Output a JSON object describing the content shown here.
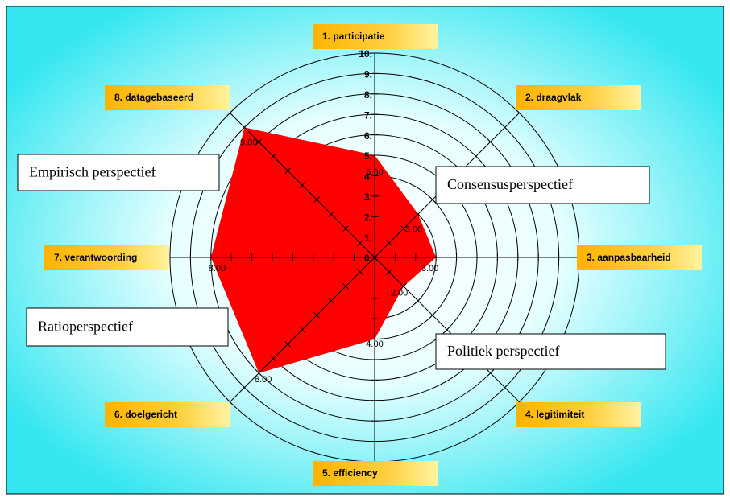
{
  "chart_data": {
    "type": "radar",
    "categories": [
      "1. participatie",
      "2. draagvlak",
      "3. aanpasbaarheid",
      "4. legitimiteit",
      "5. efficiency",
      "6. doelgericht",
      "7. verantwoording",
      "8. datagebaseerd"
    ],
    "values": [
      5,
      3,
      3,
      2,
      4,
      8,
      8,
      9
    ],
    "value_labels": [
      "5.00",
      "3.00",
      "3.00",
      "2.00",
      "4.00",
      "8.00",
      "8.00",
      "9.00"
    ],
    "color": "#ff0000",
    "rlim": [
      0,
      10
    ],
    "rticks": [
      {
        "value": 0,
        "label": "0."
      },
      {
        "value": 1,
        "label": "1."
      },
      {
        "value": 2,
        "label": "2."
      },
      {
        "value": 3,
        "label": "3."
      },
      {
        "value": 4,
        "label": "4."
      },
      {
        "value": 5,
        "label": "5."
      },
      {
        "value": 6,
        "label": "6."
      },
      {
        "value": 7,
        "label": "7."
      },
      {
        "value": 8,
        "label": "8."
      },
      {
        "value": 9,
        "label": "9."
      },
      {
        "value": 10,
        "label": "10."
      }
    ],
    "annotations": [
      "Empirisch perspectief",
      "Consensusperspectief",
      "Ratioperspectief",
      "Politiek perspectief"
    ]
  }
}
